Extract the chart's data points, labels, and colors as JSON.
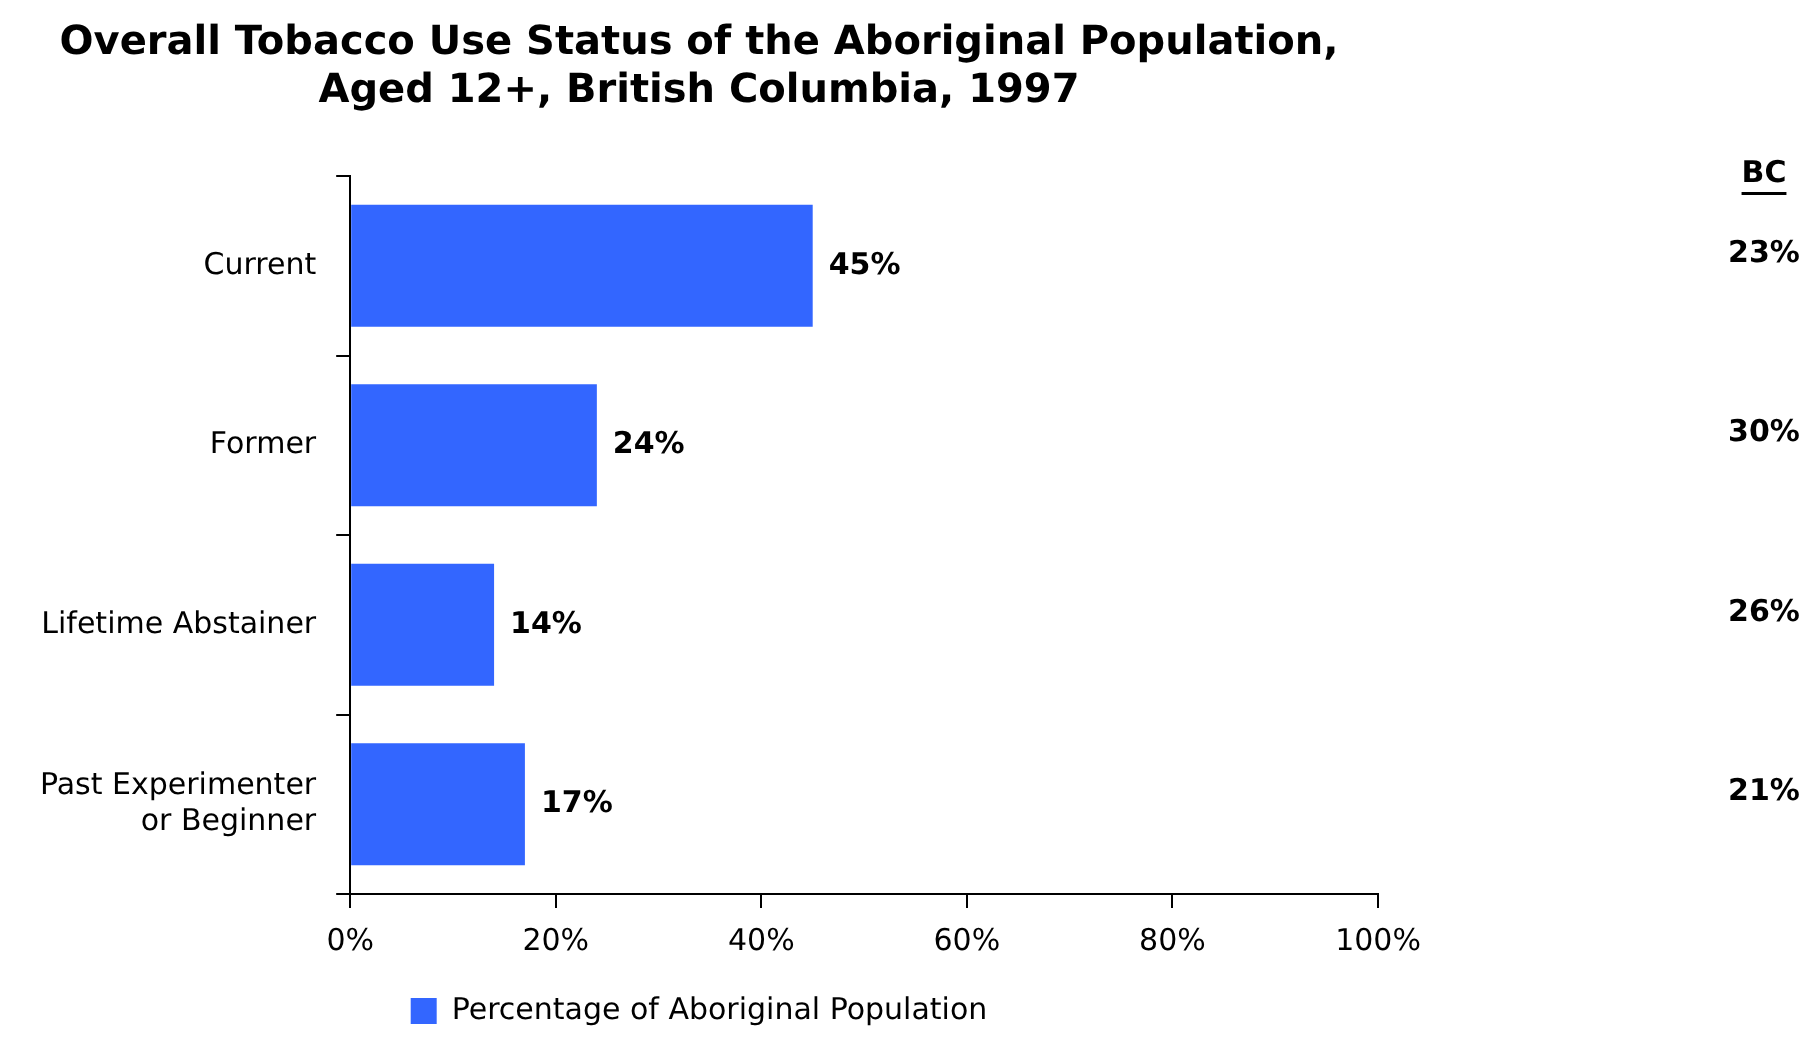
{
  "chart_data": {
    "type": "bar",
    "orientation": "horizontal",
    "title": "Overall Tobacco Use Status of the Aboriginal Population, Aged 12+, British Columbia, 1997",
    "categories": [
      "Current",
      "Former",
      "Lifetime Abstainer",
      "Past Experimenter or Beginner"
    ],
    "series": [
      {
        "name": "Percentage of Aboriginal Population",
        "color": "#3366ff",
        "values": [
          45,
          24,
          14,
          17
        ],
        "value_labels": [
          "45%",
          "24%",
          "14%",
          "17%"
        ]
      }
    ],
    "xlim": [
      0,
      100
    ],
    "xticks": [
      {
        "value": 0,
        "label": "0%"
      },
      {
        "value": 20,
        "label": "20%"
      },
      {
        "value": 40,
        "label": "40%"
      },
      {
        "value": 60,
        "label": "60%"
      },
      {
        "value": 80,
        "label": "80%"
      },
      {
        "value": 100,
        "label": "100%"
      }
    ],
    "annotations": [
      "BC",
      "23%",
      "30%",
      "26%",
      "21%"
    ],
    "grid": false,
    "legend": "bottom"
  }
}
